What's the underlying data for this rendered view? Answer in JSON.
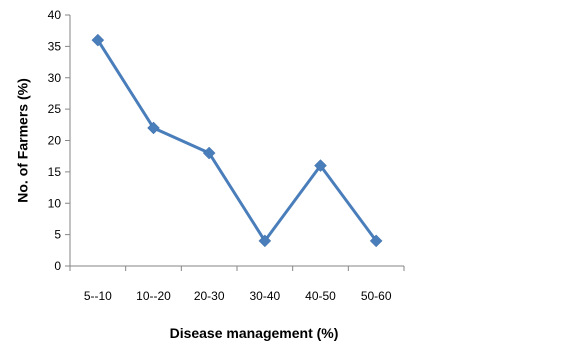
{
  "chart_data": {
    "type": "line",
    "title": "",
    "xlabel": "Disease management (%)",
    "ylabel": "No. of Farmers  (%)",
    "categories": [
      "5--10",
      "10--20",
      "20-30",
      "30-40",
      "40-50",
      "50-60"
    ],
    "series": [
      {
        "values": [
          36,
          22,
          18,
          4,
          16,
          4
        ]
      }
    ],
    "ylim": [
      0,
      40
    ],
    "yticks": [
      0,
      5,
      10,
      15,
      20,
      25,
      30,
      35,
      40
    ],
    "grid": false,
    "legend": "none",
    "marker": "diamond",
    "color": "#4a7ebb"
  }
}
